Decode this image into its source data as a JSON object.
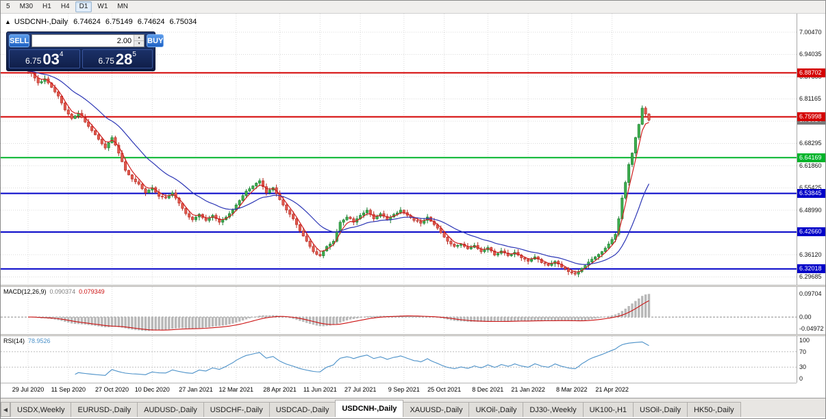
{
  "toolbar": {
    "timeframes": [
      {
        "label": "5"
      },
      {
        "label": "M30"
      },
      {
        "label": "H1"
      },
      {
        "label": "H4"
      },
      {
        "label": "D1",
        "active": true
      },
      {
        "label": "W1"
      },
      {
        "label": "MN"
      }
    ]
  },
  "chart": {
    "title": "USDCNH-,Daily",
    "ohlc": {
      "open": "6.74624",
      "high": "6.75149",
      "low": "6.74624",
      "close": "6.75034"
    },
    "trade_panel": {
      "sell_label": "SELL",
      "buy_label": "BUY",
      "volume": "2.00",
      "bid": {
        "big": "6.75",
        "large": "03",
        "sup": "4"
      },
      "ask": {
        "big": "6.75",
        "large": "28",
        "sup": "5"
      }
    },
    "y_ticks": [
      "7.00470",
      "6.94035",
      "6.87600",
      "6.81165",
      "6.74730",
      "6.68295",
      "6.61860",
      "6.55425",
      "6.48990",
      "6.42555",
      "6.36120",
      "6.29685"
    ],
    "levels": [
      {
        "price": 6.88702,
        "label": "6.88702",
        "color": "#d40000"
      },
      {
        "price": 6.75998,
        "label": "6.75998",
        "color": "#d40000"
      },
      {
        "price": 6.64169,
        "label": "6.64169",
        "color": "#00b42a"
      },
      {
        "price": 6.53845,
        "label": "6.53845",
        "color": "#0000c8"
      },
      {
        "price": 6.4266,
        "label": "6.42660",
        "color": "#0000c8"
      },
      {
        "price": 6.32018,
        "label": "6.32018",
        "color": "#0000c8"
      }
    ],
    "bid_badge": {
      "price": 6.75034,
      "label": "6.75034",
      "color": "#7a7a7a"
    }
  },
  "macd": {
    "name": "MACD(12,26,9)",
    "value_main": "0.090374",
    "value_signal": "0.079349",
    "axis": [
      {
        "label": "0.09704",
        "value": 0.09704
      },
      {
        "label": "0.00",
        "value": 0
      },
      {
        "label": "-0.04972",
        "value": -0.04972
      }
    ]
  },
  "rsi": {
    "name": "RSI(14)",
    "value": "78.9526",
    "axis": [
      {
        "label": "100",
        "value": 100
      },
      {
        "label": "70",
        "value": 70
      },
      {
        "label": "30",
        "value": 30
      },
      {
        "label": "0",
        "value": 0
      }
    ],
    "levels": [
      70,
      30
    ]
  },
  "tabs": [
    {
      "label": "USDX,Weekly"
    },
    {
      "label": "EURUSD-,Daily"
    },
    {
      "label": "AUDUSD-,Daily"
    },
    {
      "label": "USDCHF-,Daily"
    },
    {
      "label": "USDCAD-,Daily"
    },
    {
      "label": "USDCNH-,Daily",
      "active": true
    },
    {
      "label": "XAUUSD-,Daily"
    },
    {
      "label": "UKOil-,Daily"
    },
    {
      "label": "DJ30-,Weekly"
    },
    {
      "label": "UK100-,H1"
    },
    {
      "label": "USOil-,Daily"
    },
    {
      "label": "HK50-,Daily"
    }
  ],
  "chart_data": {
    "type": "candlestick",
    "symbol": "USDCNH-",
    "period": "Daily",
    "title": "USDCNH-,Daily",
    "last_candle": {
      "open": 6.74624,
      "high": 6.75149,
      "low": 6.74624,
      "close": 6.75034
    },
    "y_axis_range": [
      6.28,
      7.02
    ],
    "grid_step": 0.06435,
    "x_ticks": [
      "29 Jul 2020",
      "11 Sep 2020",
      "27 Oct 2020",
      "10 Dec 2020",
      "27 Jan 2021",
      "12 Mar 2021",
      "28 Apr 2021",
      "11 Jun 2021",
      "27 Jul 2021",
      "9 Sep 2021",
      "25 Oct 2021",
      "8 Dec 2021",
      "21 Jan 2022",
      "8 Mar 2022",
      "21 Apr 2022"
    ],
    "tick_indices": [
      0,
      12,
      25,
      37,
      50,
      62,
      75,
      87,
      99,
      112,
      124,
      137,
      149,
      162,
      174
    ],
    "closes": [
      6.892,
      6.885,
      6.872,
      6.858,
      6.862,
      6.87,
      6.858,
      6.845,
      6.832,
      6.82,
      6.8,
      6.78,
      6.768,
      6.755,
      6.762,
      6.77,
      6.758,
      6.745,
      6.732,
      6.72,
      6.708,
      6.695,
      6.682,
      6.67,
      6.685,
      6.7,
      6.678,
      6.655,
      6.63,
      6.605,
      6.592,
      6.58,
      6.572,
      6.565,
      6.552,
      6.54,
      6.548,
      6.555,
      6.542,
      6.53,
      6.528,
      6.525,
      6.532,
      6.54,
      6.525,
      6.51,
      6.495,
      6.48,
      6.47,
      6.462,
      6.47,
      6.478,
      6.468,
      6.46,
      6.468,
      6.475,
      6.465,
      6.455,
      6.462,
      6.47,
      6.48,
      6.49,
      6.505,
      6.518,
      6.532,
      6.545,
      6.552,
      6.56,
      6.568,
      6.575,
      6.558,
      6.54,
      6.548,
      6.555,
      6.538,
      6.52,
      6.505,
      6.49,
      6.478,
      6.465,
      6.448,
      6.43,
      6.415,
      6.4,
      6.385,
      6.37,
      6.362,
      6.358,
      6.372,
      6.385,
      6.392,
      6.4,
      6.428,
      6.455,
      6.462,
      6.47,
      6.465,
      6.455,
      6.465,
      6.475,
      6.482,
      6.49,
      6.478,
      6.465,
      6.472,
      6.48,
      6.472,
      6.462,
      6.47,
      6.478,
      6.482,
      6.49,
      6.483,
      6.475,
      6.468,
      6.46,
      6.458,
      6.452,
      6.46,
      6.47,
      6.458,
      6.448,
      6.438,
      6.425,
      6.412,
      6.4,
      6.392,
      6.385,
      6.388,
      6.392,
      6.385,
      6.378,
      6.382,
      6.388,
      6.378,
      6.37,
      6.375,
      6.382,
      6.372,
      6.36,
      6.365,
      6.372,
      6.366,
      6.358,
      6.362,
      6.368,
      6.36,
      6.352,
      6.348,
      6.342,
      6.348,
      6.355,
      6.348,
      6.338,
      6.335,
      6.33,
      6.335,
      6.342,
      6.334,
      6.325,
      6.32,
      6.312,
      6.308,
      6.305,
      6.312,
      6.322,
      6.33,
      6.34,
      6.348,
      6.355,
      6.362,
      6.37,
      6.38,
      6.392,
      6.405,
      6.42,
      6.465,
      6.525,
      6.57,
      6.622,
      6.655,
      6.7,
      6.738,
      6.785,
      6.768,
      6.7503
    ],
    "horizontal_levels": [
      6.88702,
      6.75998,
      6.64169,
      6.53845,
      6.4266,
      6.32018
    ],
    "overlays": [
      {
        "name": "fast-ma",
        "color": "#cf1f1f"
      },
      {
        "name": "slow-ma",
        "color": "#2b35b5"
      }
    ],
    "indicators": [
      {
        "name": "MACD",
        "params": [
          12,
          26,
          9
        ],
        "current": [
          0.090374,
          0.079349
        ]
      },
      {
        "name": "RSI",
        "params": [
          14
        ],
        "current": 78.9526
      }
    ]
  }
}
